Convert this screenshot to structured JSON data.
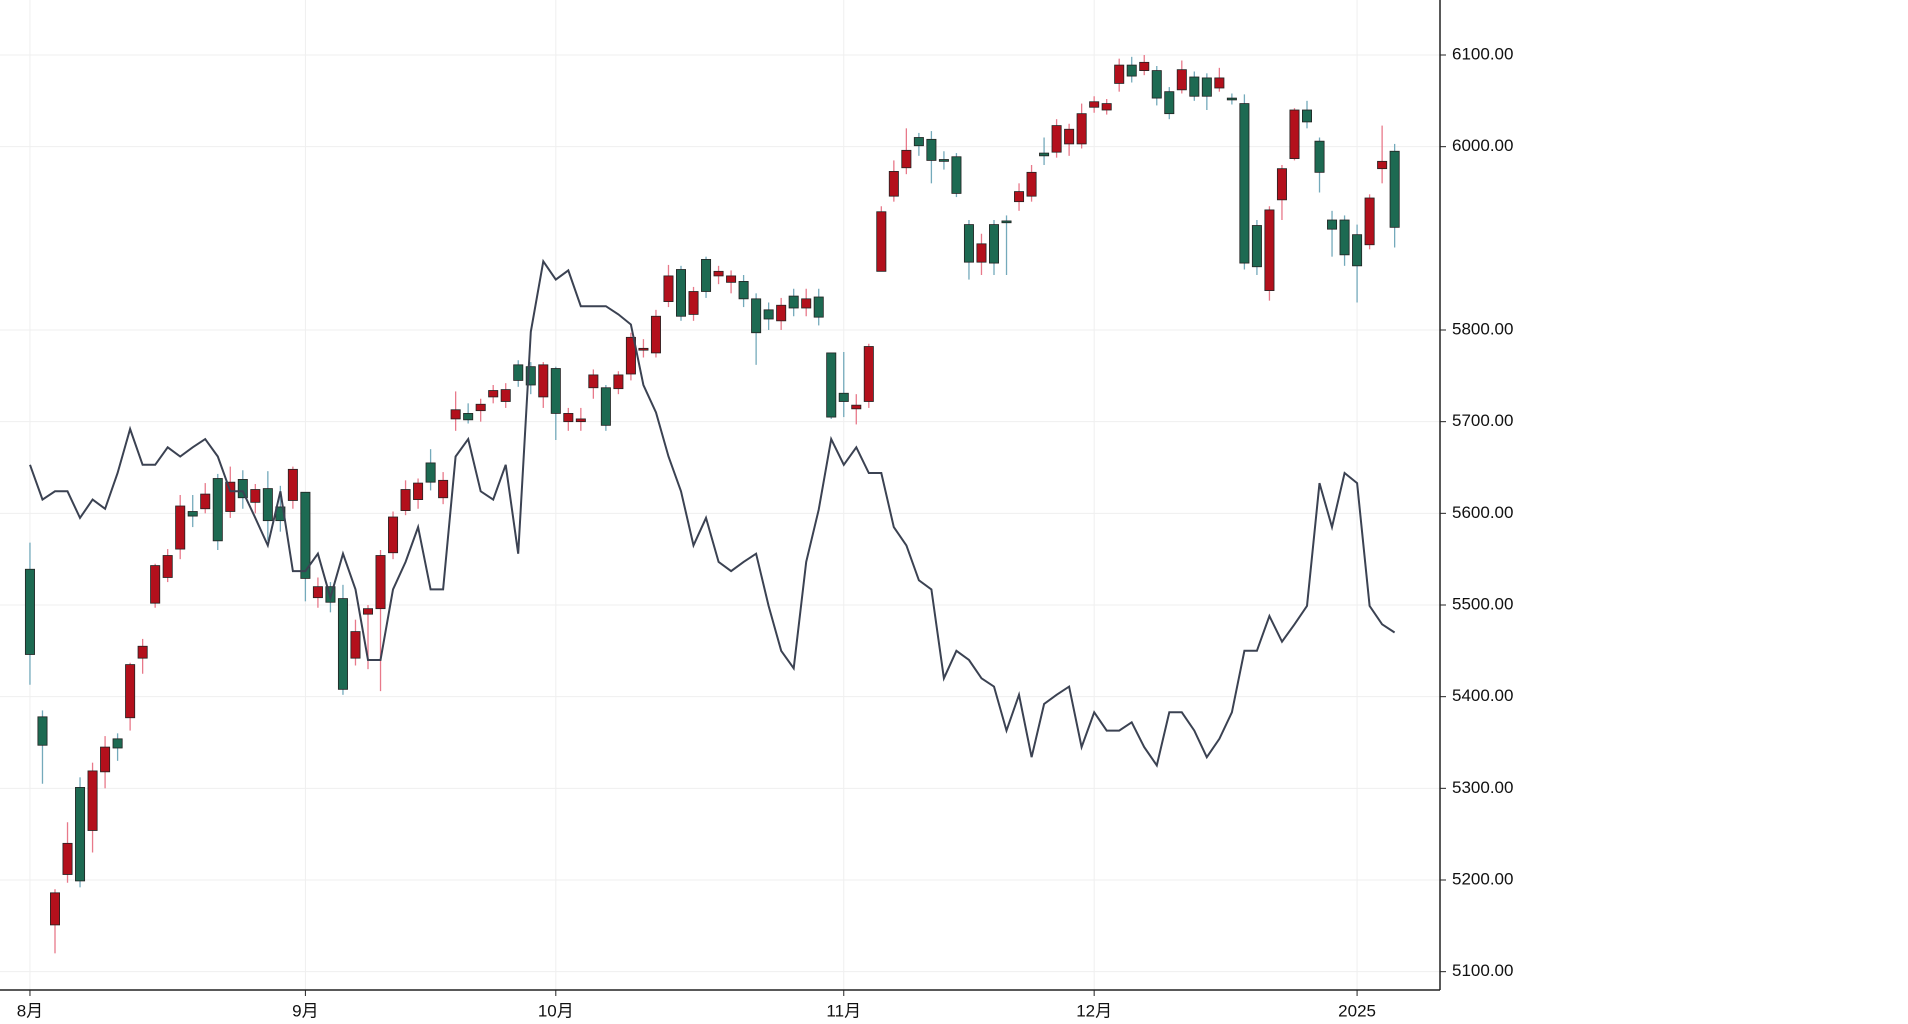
{
  "chart_data": {
    "type": "candlestick",
    "categories": [
      "8月",
      null,
      null,
      null,
      null,
      null,
      null,
      null,
      null,
      null,
      null,
      null,
      null,
      null,
      null,
      null,
      null,
      null,
      null,
      null,
      null,
      null,
      "9月",
      null,
      null,
      null,
      null,
      null,
      null,
      null,
      null,
      null,
      null,
      null,
      null,
      null,
      null,
      null,
      null,
      null,
      null,
      null,
      "10月",
      null,
      null,
      null,
      null,
      null,
      null,
      null,
      null,
      null,
      null,
      null,
      null,
      null,
      null,
      null,
      null,
      null,
      null,
      null,
      null,
      null,
      null,
      "11月",
      null,
      null,
      null,
      null,
      null,
      null,
      null,
      null,
      null,
      null,
      null,
      null,
      null,
      null,
      null,
      null,
      null,
      null,
      null,
      "12月",
      null,
      null,
      null,
      null,
      null,
      null,
      null,
      null,
      null,
      null,
      null,
      null,
      null,
      null,
      null,
      null,
      null,
      null,
      null,
      null,
      "2025",
      null,
      null,
      null
    ],
    "open": [
      5539,
      5378,
      5151,
      5206,
      5301,
      5254,
      5318,
      5354,
      5377,
      5442,
      5502,
      5530,
      5561,
      5602,
      5605,
      5638,
      5602,
      5637,
      5612,
      5627,
      5607,
      5614,
      5623,
      5508,
      5520,
      5507,
      5442,
      5490,
      5496,
      5557,
      5603,
      5615,
      5655,
      5617,
      5703,
      5709,
      5712,
      5727,
      5722,
      5762,
      5760,
      5727,
      5758,
      5700,
      5700,
      5737,
      5737,
      5736,
      5752,
      5778,
      5775,
      5831,
      5866,
      5817,
      5877,
      5859,
      5852,
      5853,
      5834,
      5822,
      5810,
      5837,
      5824,
      5836,
      5775,
      5731,
      5714,
      5722,
      5864,
      5946,
      5977,
      6010,
      6008,
      5986,
      5989,
      5915,
      5874,
      5915,
      5919,
      5940,
      5946,
      5993,
      5994,
      6003,
      6003,
      6043,
      6040,
      6069,
      6089,
      6083,
      6083,
      6060,
      6062,
      6076,
      6075,
      6064,
      6053,
      6047,
      5914,
      5843,
      5942,
      5987,
      6040,
      6006,
      5920,
      5920,
      5904,
      5893,
      5976,
      5995
    ],
    "high": [
      5568,
      5385,
      5190,
      5263,
      5312,
      5328,
      5357,
      5360,
      5437,
      5463,
      5545,
      5561,
      5620,
      5620,
      5633,
      5643,
      5651,
      5647,
      5632,
      5646,
      5630,
      5651,
      5623,
      5530,
      5525,
      5522,
      5484,
      5500,
      5560,
      5602,
      5636,
      5638,
      5670,
      5645,
      5733,
      5720,
      5725,
      5740,
      5742,
      5767,
      5765,
      5765,
      5760,
      5715,
      5715,
      5757,
      5740,
      5755,
      5797,
      5790,
      5822,
      5871,
      5870,
      5847,
      5880,
      5870,
      5865,
      5860,
      5840,
      5830,
      5835,
      5845,
      5845,
      5845,
      5775,
      5776,
      5730,
      5785,
      5935,
      5985,
      6020,
      6015,
      6017,
      5995,
      5993,
      5920,
      5905,
      5920,
      5925,
      5960,
      5980,
      6010,
      6030,
      6025,
      6047,
      6055,
      6052,
      6096,
      6098,
      6100,
      6088,
      6065,
      6094,
      6082,
      6080,
      6086,
      6058,
      6057,
      5920,
      5935,
      5980,
      6042,
      6050,
      6010,
      5930,
      5925,
      5915,
      5948,
      6023,
      6003
    ],
    "low": [
      5413,
      5305,
      5120,
      5197,
      5192,
      5230,
      5300,
      5330,
      5363,
      5425,
      5497,
      5525,
      5550,
      5585,
      5600,
      5560,
      5595,
      5605,
      5600,
      5570,
      5580,
      5605,
      5504,
      5497,
      5492,
      5402,
      5434,
      5430,
      5406,
      5550,
      5598,
      5605,
      5625,
      5610,
      5690,
      5698,
      5700,
      5720,
      5715,
      5738,
      5730,
      5715,
      5680,
      5690,
      5690,
      5725,
      5690,
      5730,
      5745,
      5770,
      5770,
      5825,
      5810,
      5810,
      5835,
      5850,
      5840,
      5825,
      5762,
      5800,
      5800,
      5815,
      5815,
      5805,
      5703,
      5705,
      5697,
      5715,
      5864,
      5940,
      5970,
      5990,
      5960,
      5975,
      5945,
      5855,
      5860,
      5860,
      5860,
      5930,
      5940,
      5980,
      5988,
      5990,
      5998,
      6037,
      6035,
      6060,
      6070,
      6078,
      6045,
      6030,
      6058,
      6050,
      6040,
      6060,
      6046,
      5866,
      5860,
      5832,
      5920,
      5985,
      6020,
      5950,
      5880,
      5870,
      5830,
      5888,
      5960,
      5890
    ],
    "close": [
      5446,
      5347,
      5186,
      5240,
      5199,
      5319,
      5345,
      5344,
      5435,
      5455,
      5543,
      5554,
      5608,
      5597,
      5621,
      5570,
      5634,
      5617,
      5626,
      5592,
      5592,
      5648,
      5529,
      5520,
      5503,
      5408,
      5471,
      5496,
      5554,
      5596,
      5626,
      5633,
      5634,
      5636,
      5713,
      5702,
      5719,
      5734,
      5735,
      5745,
      5740,
      5762,
      5709,
      5709,
      5703,
      5751,
      5696,
      5751,
      5792,
      5780,
      5815,
      5859,
      5815,
      5842,
      5842,
      5864,
      5859,
      5834,
      5797,
      5812,
      5827,
      5824,
      5834,
      5814,
      5705,
      5722,
      5718,
      5782,
      5929,
      5973,
      5996,
      6001,
      5985,
      5984,
      5949,
      5874,
      5894,
      5873,
      5917,
      5951,
      5972,
      5990,
      6023,
      6019,
      6036,
      6049,
      6047,
      6089,
      6077,
      6092,
      6053,
      6036,
      6084,
      6055,
      6055,
      6075,
      6051,
      5873,
      5869,
      5931,
      5976,
      6040,
      6027,
      5972,
      5910,
      5882,
      5870,
      5944,
      5984,
      5912
    ],
    "up_color": "#b3101c",
    "down_color": "#1d6a52",
    "up_wick_color": "#e8798a",
    "down_wick_color": "#74aabb",
    "line": {
      "color": "#3b4252",
      "values": [
        5653,
        5615,
        5624,
        5624,
        5595,
        5615,
        5605,
        5644,
        5692,
        5653,
        5653,
        5672,
        5662,
        5672,
        5681,
        5662,
        5624,
        5624,
        5595,
        5565,
        5624,
        5537,
        5537,
        5556,
        5508,
        5556,
        5517,
        5440,
        5440,
        5517,
        5547,
        5585,
        5517,
        5517,
        5662,
        5681,
        5624,
        5615,
        5653,
        5556,
        5798,
        5875,
        5855,
        5865,
        5826,
        5826,
        5826,
        5817,
        5806,
        5740,
        5710,
        5662,
        5624,
        5565,
        5595,
        5547,
        5537,
        5547,
        5556,
        5499,
        5450,
        5431,
        5547,
        5604,
        5681,
        5653,
        5672,
        5644,
        5644,
        5585,
        5565,
        5527,
        5517,
        5420,
        5450,
        5440,
        5420,
        5411,
        5363,
        5402,
        5334,
        5392,
        5402,
        5411,
        5345,
        5383,
        5363,
        5363,
        5372,
        5345,
        5325,
        5383,
        5383,
        5363,
        5334,
        5354,
        5383,
        5450,
        5450,
        5488,
        5460,
        5479,
        5499,
        5633,
        5585,
        5644,
        5633,
        5499,
        5479,
        5470
      ]
    },
    "ylim": [
      5080,
      6160
    ],
    "yticks": [
      {
        "value": 5100,
        "label": "5100.00"
      },
      {
        "value": 5200,
        "label": "5200.00"
      },
      {
        "value": 5300,
        "label": "5300.00"
      },
      {
        "value": 5400,
        "label": "5400.00"
      },
      {
        "value": 5500,
        "label": "5500.00"
      },
      {
        "value": 5600,
        "label": "5600.00"
      },
      {
        "value": 5700,
        "label": "5700.00"
      },
      {
        "value": 5800,
        "label": "5800.00"
      },
      {
        "value": 6000,
        "label": "6000.00"
      },
      {
        "value": 6100,
        "label": "6100.00"
      }
    ],
    "grid": true
  }
}
